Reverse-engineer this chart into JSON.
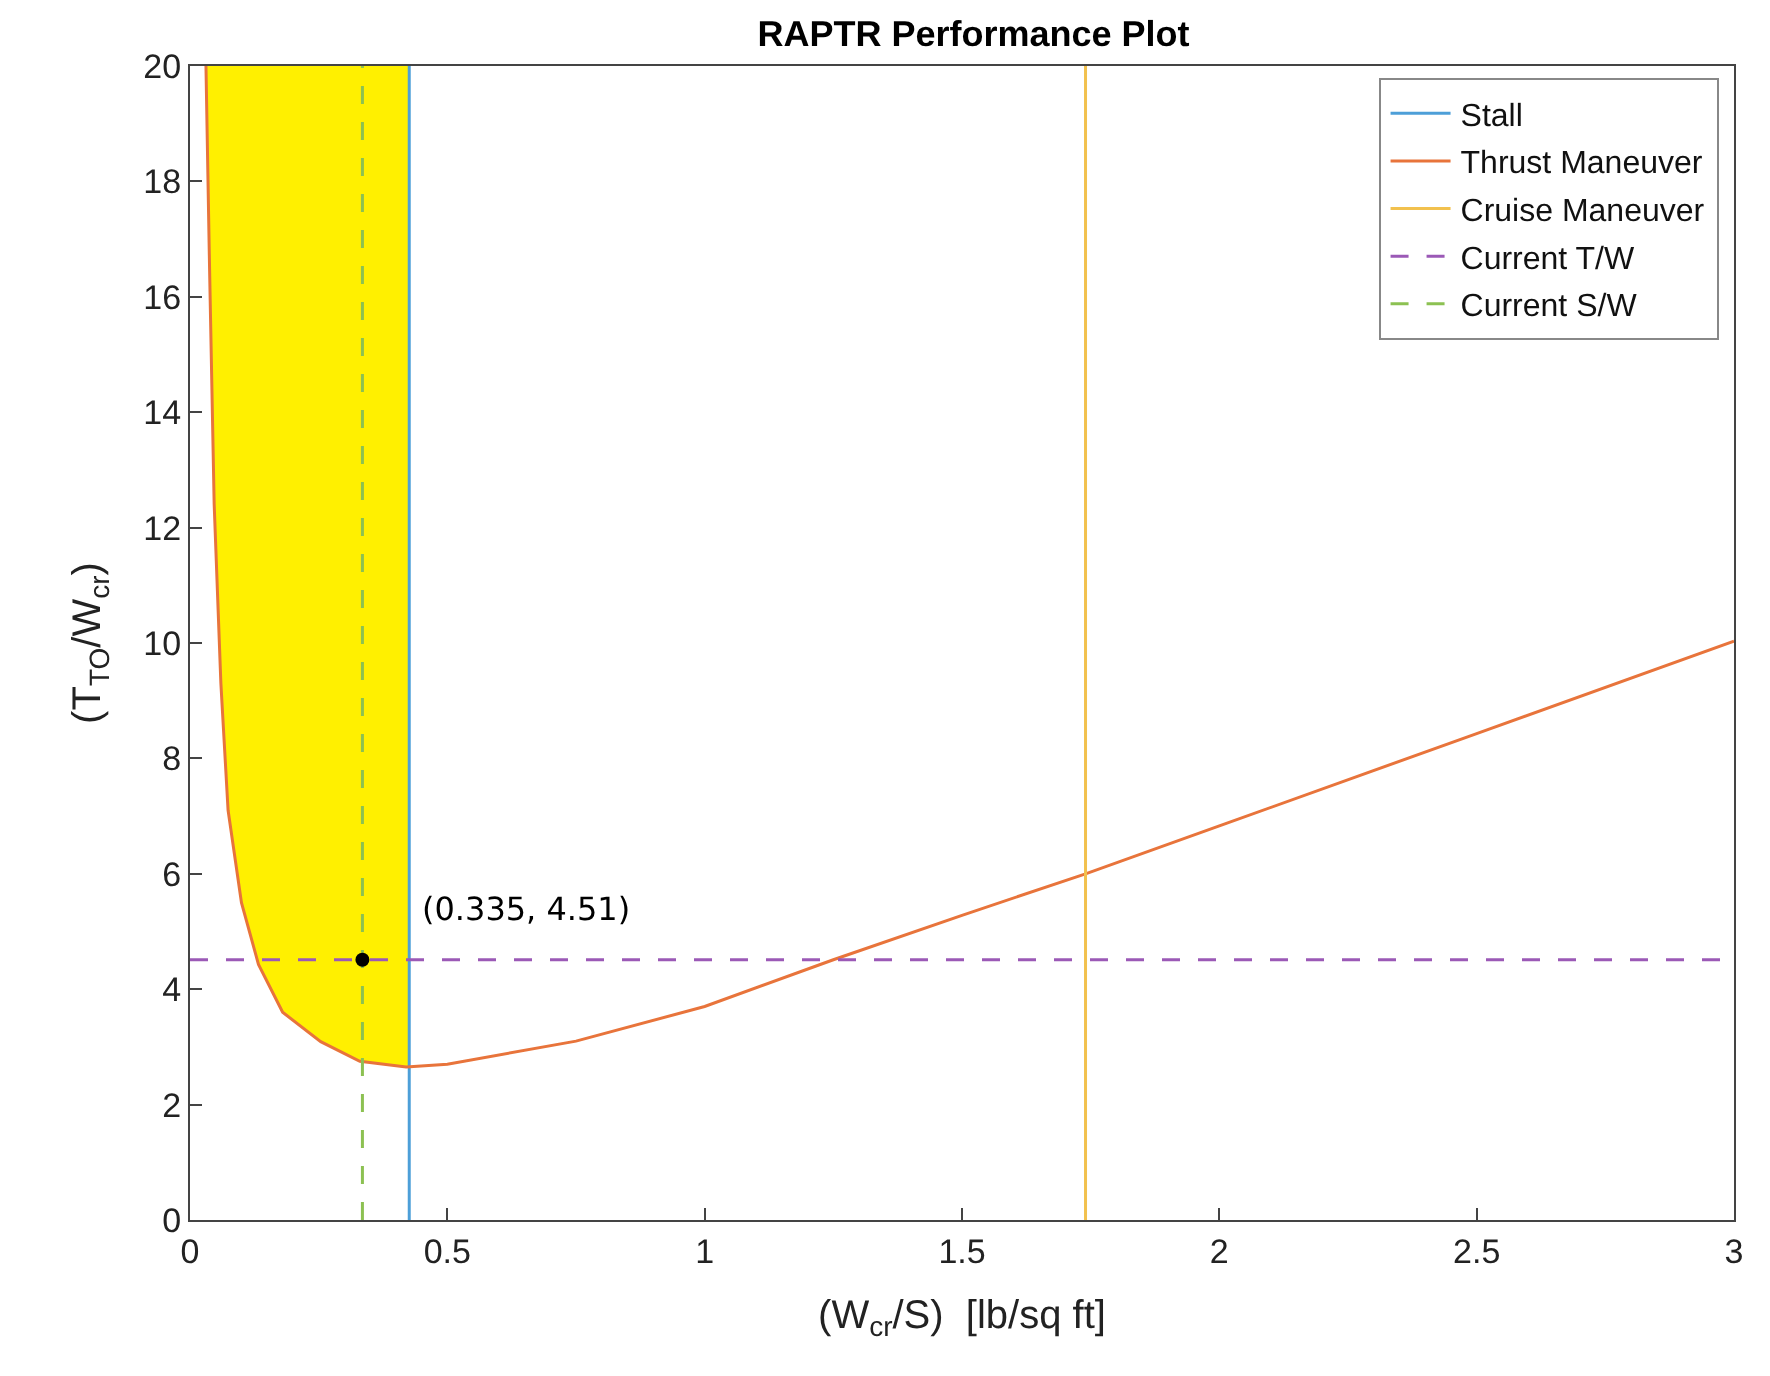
{
  "chart_data": {
    "type": "line",
    "title": "RAPTR Performance Plot",
    "xlabel": "(W$_{cr}$/S)  [lb/sq ft]",
    "ylabel": "(T$_{TO}$/W$_{cr}$)",
    "xlim": [
      0,
      3
    ],
    "ylim": [
      0,
      20
    ],
    "xticks": [
      0,
      0.5,
      1,
      1.5,
      2,
      2.5,
      3
    ],
    "yticks": [
      0,
      2,
      4,
      6,
      8,
      10,
      12,
      14,
      16,
      18,
      20
    ],
    "grid": false,
    "legend": "top right",
    "series": [
      {
        "type": "area",
        "color": "#fff000",
        "x": [
          0.031,
          0.038,
          0.047,
          0.06,
          0.074,
          0.1,
          0.133,
          0.18,
          0.254,
          0.33,
          0.426,
          0.426
        ],
        "values": [
          20,
          16.5,
          12.4,
          9.3,
          7.1,
          5.5,
          4.43,
          3.6,
          3.09,
          2.75,
          2.65,
          20
        ]
      },
      {
        "name": "Stall",
        "color": "#4d9fd8",
        "x": [
          0.426,
          0.426
        ],
        "values": [
          0,
          20
        ]
      },
      {
        "name": "Thrust Maneuver",
        "color": "#e8743b",
        "x": [
          0.031,
          0.038,
          0.047,
          0.06,
          0.074,
          0.1,
          0.133,
          0.18,
          0.254,
          0.33,
          0.42,
          0.5,
          0.75,
          1.0,
          1.25,
          1.5,
          1.74,
          2,
          2.5,
          3
        ],
        "values": [
          20,
          16.5,
          12.4,
          9.3,
          7.1,
          5.5,
          4.43,
          3.6,
          3.09,
          2.75,
          2.65,
          2.7,
          3.1,
          3.7,
          4.51,
          5.28,
          6.0,
          6.83,
          8.43,
          10.03
        ]
      },
      {
        "name": "Cruise Maneuver",
        "color": "#f2c14e",
        "x": [
          1.74,
          1.74
        ],
        "values": [
          0,
          20
        ]
      },
      {
        "name": "Current T/W",
        "color": "#9b59b6",
        "line_style": "dashed",
        "x": [
          0,
          3
        ],
        "values": [
          4.51,
          4.51
        ]
      },
      {
        "name": "Current S/W",
        "color": "#8cc152",
        "line_style": "dashed",
        "x": [
          0.335,
          0.335
        ],
        "values": [
          0,
          20
        ]
      },
      {
        "type": "scatter",
        "color": "#000000",
        "marker": "circle",
        "x": [
          0.335
        ],
        "values": [
          4.51
        ]
      }
    ],
    "annotations": [
      {
        "text": "(0.335, 4.51)",
        "x": 0.335,
        "y": 4.51
      }
    ]
  }
}
